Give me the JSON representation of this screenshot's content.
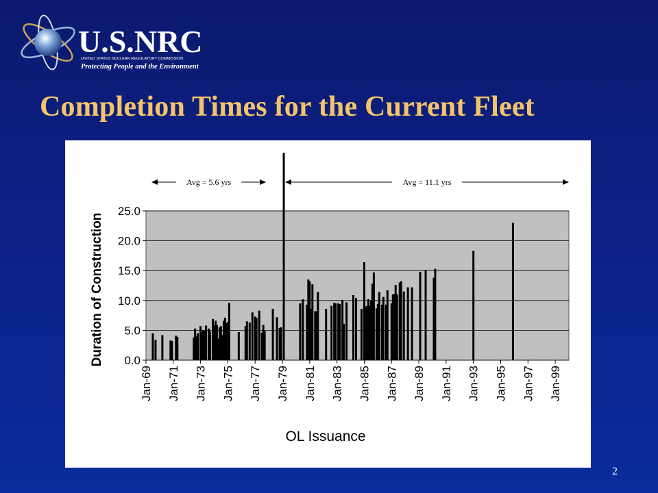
{
  "logo": {
    "name": "U.S.NRC",
    "subtitle": "UNITED STATES NUCLEAR REGULATORY COMMISSION",
    "tagline": "Protecting People and the Environment"
  },
  "slide": {
    "title": "Completion Times for the Current Fleet",
    "page_number": "2"
  },
  "colors": {
    "title": "#f5c46a",
    "plot_background": "#c0c0c0",
    "bars": "#000000"
  },
  "chart_data": {
    "type": "bar",
    "xlabel": "OL Issuance",
    "ylabel": "Duration of Construction",
    "ylim": [
      0,
      25
    ],
    "yticks": [
      "0.0",
      "5.0",
      "10.0",
      "15.0",
      "20.0",
      "25.0"
    ],
    "xlim": [
      1969,
      2000
    ],
    "xticks": [
      "Jan-69",
      "Jan-71",
      "Jan-73",
      "Jan-75",
      "Jan-77",
      "Jan-79",
      "Jan-81",
      "Jan-83",
      "Jan-85",
      "Jan-87",
      "Jan-89",
      "Jan-91",
      "Jan-93",
      "Jan-95",
      "Jan-97",
      "Jan-99"
    ],
    "grid": true,
    "annotations": [
      {
        "text": "Avg = 5.6 yrs",
        "from": 1969.4,
        "to": 1977.8
      },
      {
        "text": "Avg = 11.1 yrs",
        "from": 1979.2,
        "to": 2000.0
      }
    ],
    "divider_year": 1979.1,
    "series": [
      {
        "points": [
          [
            1969.5,
            4.5
          ],
          [
            1969.7,
            3.4
          ],
          [
            1970.2,
            4.2
          ],
          [
            1970.8,
            3.3
          ],
          [
            1970.9,
            3.2
          ],
          [
            1971.2,
            4.1
          ],
          [
            1971.3,
            3.9
          ],
          [
            1972.5,
            3.8
          ],
          [
            1972.6,
            5.3
          ],
          [
            1972.7,
            4.0
          ],
          [
            1972.8,
            4.5
          ],
          [
            1973.0,
            5.7
          ],
          [
            1973.1,
            4.7
          ],
          [
            1973.2,
            5.0
          ],
          [
            1973.3,
            4.9
          ],
          [
            1973.4,
            5.8
          ],
          [
            1973.6,
            5.3
          ],
          [
            1973.7,
            4.8
          ],
          [
            1973.9,
            6.9
          ],
          [
            1974.0,
            5.8
          ],
          [
            1974.1,
            6.6
          ],
          [
            1974.2,
            5.9
          ],
          [
            1974.3,
            3.6
          ],
          [
            1974.4,
            5.5
          ],
          [
            1974.5,
            5.7
          ],
          [
            1974.6,
            4.2
          ],
          [
            1974.7,
            6.6
          ],
          [
            1974.8,
            7.1
          ],
          [
            1974.9,
            6.2
          ],
          [
            1975.0,
            6.4
          ],
          [
            1975.1,
            9.6
          ],
          [
            1975.8,
            4.7
          ],
          [
            1976.3,
            5.7
          ],
          [
            1976.4,
            6.5
          ],
          [
            1976.6,
            6.3
          ],
          [
            1976.8,
            8.0
          ],
          [
            1977.0,
            7.3
          ],
          [
            1977.1,
            7.1
          ],
          [
            1977.3,
            8.3
          ],
          [
            1977.5,
            4.6
          ],
          [
            1977.6,
            5.9
          ],
          [
            1977.7,
            4.9
          ],
          [
            1978.3,
            8.6
          ],
          [
            1978.6,
            7.2
          ],
          [
            1978.8,
            5.4
          ],
          [
            1978.9,
            5.5
          ],
          [
            1979.1,
            5.8
          ],
          [
            1980.3,
            9.5
          ],
          [
            1980.5,
            10.2
          ],
          [
            1980.8,
            9.3
          ],
          [
            1980.9,
            13.5
          ],
          [
            1981.0,
            13.2
          ],
          [
            1981.1,
            8.6
          ],
          [
            1981.2,
            12.7
          ],
          [
            1981.4,
            8.2
          ],
          [
            1981.5,
            8.2
          ],
          [
            1981.6,
            11.4
          ],
          [
            1982.2,
            8.6
          ],
          [
            1982.6,
            9.1
          ],
          [
            1982.8,
            9.6
          ],
          [
            1982.9,
            9.5
          ],
          [
            1983.1,
            9.5
          ],
          [
            1983.2,
            9.4
          ],
          [
            1983.4,
            10.1
          ],
          [
            1983.5,
            6.1
          ],
          [
            1983.7,
            9.7
          ],
          [
            1984.2,
            10.9
          ],
          [
            1984.4,
            10.4
          ],
          [
            1984.8,
            8.6
          ],
          [
            1985.0,
            16.4
          ],
          [
            1985.1,
            9.0
          ],
          [
            1985.2,
            9.1
          ],
          [
            1985.3,
            10.2
          ],
          [
            1985.4,
            9.1
          ],
          [
            1985.5,
            10.0
          ],
          [
            1985.6,
            12.8
          ],
          [
            1985.7,
            14.7
          ],
          [
            1985.9,
            8.7
          ],
          [
            1986.0,
            9.4
          ],
          [
            1986.1,
            11.4
          ],
          [
            1986.3,
            9.3
          ],
          [
            1986.4,
            10.6
          ],
          [
            1986.6,
            9.3
          ],
          [
            1986.7,
            11.7
          ],
          [
            1987.0,
            9.5
          ],
          [
            1987.1,
            11.0
          ],
          [
            1987.2,
            11.1
          ],
          [
            1987.3,
            12.6
          ],
          [
            1987.4,
            11.0
          ],
          [
            1987.6,
            13.0
          ],
          [
            1987.7,
            13.2
          ],
          [
            1987.9,
            11.5
          ],
          [
            1988.2,
            12.2
          ],
          [
            1988.5,
            12.2
          ],
          [
            1989.1,
            14.8
          ],
          [
            1989.5,
            15.1
          ],
          [
            1990.1,
            13.8
          ],
          [
            1990.2,
            15.3
          ],
          [
            1993.0,
            18.3
          ],
          [
            1995.9,
            23.0
          ]
        ]
      }
    ]
  }
}
